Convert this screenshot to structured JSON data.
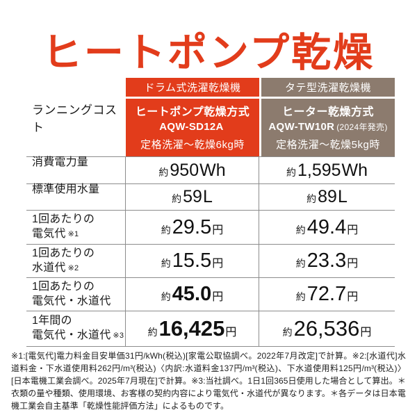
{
  "title": "ヒートポンプ乾燥",
  "colors": {
    "accent_red": "#e23c1b",
    "brand_brown": "#8c7b6e",
    "border_gray": "#8c8c8c",
    "header_text": "#ffffff"
  },
  "table": {
    "corner_label": "ランニングコスト",
    "columns": [
      {
        "type": "ドラム式洗濯乾燥機",
        "method": "ヒートポンプ乾燥方式",
        "model": "AQW-SD12A",
        "model_note": "",
        "condition": "定格洗濯〜乾燥6kg時"
      },
      {
        "type": "タテ型洗濯乾燥機",
        "method": "ヒーター乾燥方式",
        "model": "AQW-TW10R",
        "model_note": "(2024年発売)",
        "condition": "定格洗濯〜乾燥5kg時"
      }
    ],
    "rows": [
      {
        "label1": "消費電力量",
        "label2": "",
        "note": "",
        "v1_prefix": "約",
        "v1_num": "950",
        "v1_unit": "Wh",
        "v2_prefix": "約",
        "v2_num": "1,595",
        "v2_unit": "Wh"
      },
      {
        "label1": "標準使用水量",
        "label2": "",
        "note": "",
        "v1_prefix": "約",
        "v1_num": "59",
        "v1_unit": "L",
        "v2_prefix": "約",
        "v2_num": "89",
        "v2_unit": "L"
      },
      {
        "label1": "1回あたりの",
        "label2": "電気代",
        "note": "※1",
        "v1_prefix": "約",
        "v1_num": "29.5",
        "v1_unit": "円",
        "v2_prefix": "約",
        "v2_num": "49.4",
        "v2_unit": "円"
      },
      {
        "label1": "1回あたりの",
        "label2": "水道代",
        "note": "※2",
        "v1_prefix": "約",
        "v1_num": "15.5",
        "v1_unit": "円",
        "v2_prefix": "約",
        "v2_num": "23.3",
        "v2_unit": "円"
      },
      {
        "label1": "1回あたりの",
        "label2": "電気代・水道代",
        "note": "",
        "v1_prefix": "約",
        "v1_num": "45.0",
        "v1_unit": "円",
        "v2_prefix": "約",
        "v2_num": "72.7",
        "v2_unit": "円"
      },
      {
        "label1": "1年間の",
        "label2": "電気代・水道代",
        "note": "※3",
        "v1_prefix": "約",
        "v1_num": "16,425",
        "v1_unit": "円",
        "v2_prefix": "約",
        "v2_num": "26,536",
        "v2_unit": "円"
      }
    ]
  },
  "footnote": "※1:[電気代]電力料金目安単価31円/kWh(税込)[家電公取協調べ。2022年7月改定]で計算。※2:[水道代]水道料金・下水道使用料262円/m³(税込)〈内訳:水道料金137円/m³(税込)、下水道使用料125円/m³(税込)〉[日本電機工業会調べ。2025年7月現在]で計算。※3:当社調べ。1日1回365日使用した場合として算出。＊衣類の量や種類、使用環境、お客様の契約内容により電気代・水道代が異なります。＊各データは日本電機工業会自主基準「乾燥性能評価方法」によるものです。",
  "chart_data": {
    "type": "table",
    "title": "ヒートポンプ乾燥 ランニングコスト比較",
    "columns": [
      "ドラム式洗濯乾燥機(ヒートポンプ乾燥方式 AQW-SD12A 定格洗濯〜乾燥6kg時)",
      "タテ型洗濯乾燥機(ヒーター乾燥方式 AQW-TW10R 2024年発売 定格洗濯〜乾燥5kg時)"
    ],
    "rows": [
      {
        "metric": "消費電力量",
        "drum_heatpump": "約950Wh",
        "tate_heater": "約1,595Wh"
      },
      {
        "metric": "標準使用水量",
        "drum_heatpump": "約59L",
        "tate_heater": "約89L"
      },
      {
        "metric": "1回あたりの電気代※1",
        "drum_heatpump": "約29.5円",
        "tate_heater": "約49.4円"
      },
      {
        "metric": "1回あたりの水道代※2",
        "drum_heatpump": "約15.5円",
        "tate_heater": "約23.3円"
      },
      {
        "metric": "1回あたりの電気代・水道代",
        "drum_heatpump": "約45.0円",
        "tate_heater": "約72.7円"
      },
      {
        "metric": "1年間の電気代・水道代※3",
        "drum_heatpump": "約16,425円",
        "tate_heater": "約26,536円"
      }
    ]
  }
}
